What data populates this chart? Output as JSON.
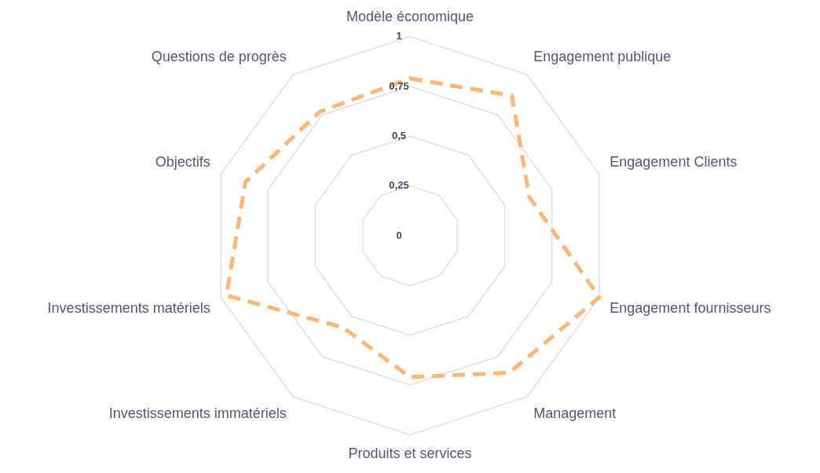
{
  "chart_data": {
    "type": "radar",
    "categories": [
      "Modèle économique",
      "Engagement publique",
      "Engagement Clients",
      "Engagement fournisseurs",
      "Management",
      "Produits et services",
      "Investissements immatériels",
      "Investissements matériels",
      "Objectifs",
      "Questions de progrès"
    ],
    "series": [
      {
        "color": "#ffb677",
        "values": [
          0.79,
          0.87,
          0.63,
          1,
          0.85,
          0.71,
          0.57,
          0.97,
          0.87,
          0.77
        ]
      }
    ],
    "ylim": [
      0,
      1
    ],
    "yticks": [
      0,
      {
        "value": 0.25,
        "label": "0,25"
      },
      {
        "value": 0.5,
        "label": "0,5"
      },
      {
        "value": 0.75,
        "label": "0,75"
      },
      1
    ],
    "grid": true,
    "legend": false,
    "marker": "none",
    "line_style": "dashed"
  }
}
